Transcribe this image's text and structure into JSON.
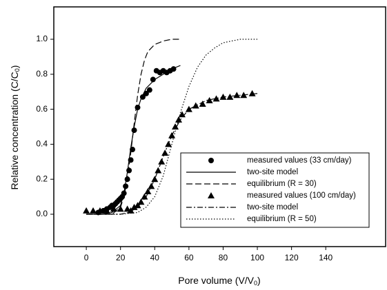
{
  "chart_data": {
    "type": "scatter-line",
    "x_label": {
      "text": "Pore volume (V/V",
      "sub": "0",
      "end": ")"
    },
    "y_label": {
      "text": "Relative concentration (C/C",
      "sub": "0",
      "end": ")"
    },
    "xlim": [
      -19,
      175
    ],
    "ylim": [
      -0.185,
      1.185
    ],
    "xticks": [
      0,
      20,
      40,
      60,
      80,
      100,
      120,
      140
    ],
    "yticks": [
      {
        "value": 0,
        "label": "0.0"
      },
      {
        "value": 0.2,
        "label": "0.2"
      },
      {
        "value": 0.4,
        "label": "0.4"
      },
      {
        "value": 0.6,
        "label": "0.6"
      },
      {
        "value": 0.8,
        "label": "0.8"
      },
      {
        "value": 1,
        "label": "1.0"
      }
    ],
    "legend": "lower right",
    "series": [
      {
        "name": "measured values (33 cm/day)",
        "color": "#000000",
        "marker": "circle",
        "dash": null,
        "x": [
          7,
          10,
          12,
          14,
          15,
          16,
          17,
          18,
          19,
          20,
          21,
          22,
          23,
          24,
          25,
          26,
          27,
          28,
          30,
          33,
          35,
          37,
          39,
          41,
          43,
          45,
          47,
          49,
          51
        ],
        "values": [
          0.01,
          0.02,
          0.03,
          0.04,
          0.05,
          0.05,
          0.06,
          0.07,
          0.08,
          0.09,
          0.1,
          0.12,
          0.16,
          0.2,
          0.25,
          0.31,
          0.37,
          0.48,
          0.61,
          0.67,
          0.69,
          0.71,
          0.77,
          0.82,
          0.81,
          0.82,
          0.81,
          0.82,
          0.83
        ]
      },
      {
        "name": "two-site model",
        "color": "#000000",
        "marker": null,
        "dash": "solid",
        "x": [
          0,
          10,
          15,
          20,
          22,
          24,
          26,
          28,
          30,
          32,
          35,
          40,
          45,
          50,
          55
        ],
        "values": [
          0,
          0,
          0.01,
          0.05,
          0.12,
          0.24,
          0.38,
          0.5,
          0.6,
          0.66,
          0.72,
          0.77,
          0.8,
          0.83,
          0.85
        ]
      },
      {
        "name": "equilibrium (R = 30)",
        "color": "#000000",
        "marker": null,
        "dash": "dashed",
        "x": [
          0,
          10,
          15,
          20,
          22,
          24,
          26,
          28,
          30,
          32,
          34,
          36,
          40,
          45,
          50,
          55
        ],
        "values": [
          0,
          0,
          0,
          0.04,
          0.1,
          0.2,
          0.35,
          0.52,
          0.68,
          0.8,
          0.88,
          0.93,
          0.97,
          0.99,
          1,
          1
        ]
      },
      {
        "name": "measured values (100 cm/day)",
        "color": "#000000",
        "marker": "triangle",
        "dash": null,
        "x": [
          0,
          4,
          8,
          12,
          16,
          20,
          24,
          26,
          28,
          30,
          32,
          34,
          36,
          38,
          40,
          42,
          44,
          46,
          48,
          50,
          52,
          54,
          56,
          60,
          64,
          68,
          72,
          76,
          80,
          84,
          88,
          92,
          97
        ],
        "values": [
          0.02,
          0.02,
          0.02,
          0.02,
          0.03,
          0.03,
          0.03,
          0.02,
          0.04,
          0.05,
          0.07,
          0.1,
          0.13,
          0.16,
          0.2,
          0.25,
          0.3,
          0.35,
          0.4,
          0.45,
          0.5,
          0.54,
          0.57,
          0.6,
          0.62,
          0.63,
          0.65,
          0.66,
          0.67,
          0.67,
          0.68,
          0.68,
          0.69
        ]
      },
      {
        "name": "two-site model",
        "color": "#000000",
        "marker": null,
        "dash": "dashdot",
        "x": [
          0,
          20,
          25,
          30,
          35,
          40,
          45,
          50,
          55,
          60,
          70,
          80,
          90,
          100
        ],
        "values": [
          0,
          0,
          0.01,
          0.04,
          0.1,
          0.2,
          0.33,
          0.45,
          0.54,
          0.6,
          0.65,
          0.67,
          0.68,
          0.69
        ]
      },
      {
        "name": "equilibrium (R = 50)",
        "color": "#000000",
        "marker": null,
        "dash": "dotted",
        "x": [
          0,
          20,
          30,
          35,
          40,
          45,
          50,
          55,
          60,
          65,
          70,
          75,
          80,
          85,
          90,
          100
        ],
        "values": [
          0,
          0,
          0.01,
          0.04,
          0.1,
          0.22,
          0.4,
          0.58,
          0.73,
          0.84,
          0.91,
          0.95,
          0.98,
          0.99,
          1,
          1
        ]
      }
    ]
  }
}
